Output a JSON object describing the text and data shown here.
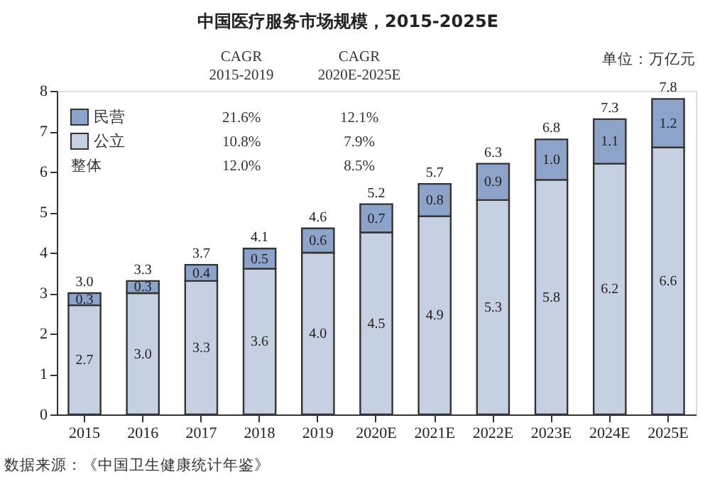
{
  "chart_data": {
    "type": "bar",
    "title": "中国医疗服务市场规模，2015-2025E",
    "stacked": true,
    "categories": [
      "2015",
      "2016",
      "2017",
      "2018",
      "2019",
      "2020E",
      "2021E",
      "2022E",
      "2023E",
      "2024E",
      "2025E"
    ],
    "series": [
      {
        "name": "公立",
        "color": "#c5d0e2",
        "values": [
          2.7,
          3.0,
          3.3,
          3.6,
          4.0,
          4.5,
          4.9,
          5.3,
          5.8,
          6.2,
          6.6
        ],
        "value_labels": [
          "2.7",
          "3.0",
          "3.3",
          "3.6",
          "4.0",
          "4.5",
          "4.9",
          "5.3",
          "5.8",
          "6.2",
          "6.6"
        ]
      },
      {
        "name": "民营",
        "color": "#8ea3c9",
        "values": [
          0.3,
          0.3,
          0.4,
          0.5,
          0.6,
          0.7,
          0.8,
          0.9,
          1.0,
          1.1,
          1.2
        ],
        "value_labels": [
          "0.3",
          "0.3",
          "0.4",
          "0.5",
          "0.6",
          "0.7",
          "0.8",
          "0.9",
          "1.0",
          "1.1",
          "1.2"
        ]
      }
    ],
    "totals": [
      "3.0",
      "3.3",
      "3.7",
      "4.1",
      "4.6",
      "5.2",
      "5.7",
      "6.3",
      "6.8",
      "7.3",
      "7.8"
    ],
    "ylim": [
      0,
      8
    ],
    "yticks": [
      0,
      1,
      2,
      3,
      4,
      5,
      6,
      7,
      8
    ],
    "grid": false,
    "legend": "top left",
    "annotations": [
      "CAGR\n2015-2019",
      "CAGR\n2020E-2025E",
      "21.6%",
      "12.1%",
      "10.8%",
      "7.9%",
      "整体",
      "12.0%",
      "8.5%",
      "单位：万亿元",
      "数据来源：《中国卫生健康统计年鉴》"
    ]
  }
}
